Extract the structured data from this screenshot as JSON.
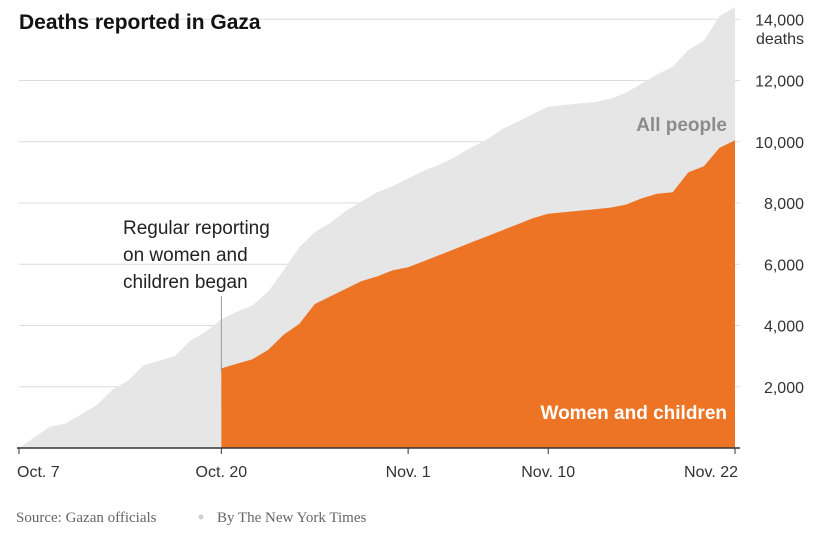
{
  "colors": {
    "all_people": "#e6e6e6",
    "women_children": "#ec7424",
    "grid": "#dcdcdc",
    "axis": "#333333",
    "title": "#121212",
    "bullet": "#cfcfcf"
  },
  "chart_data": {
    "type": "area",
    "title": "Deaths reported in Gaza",
    "y_unit": "deaths",
    "ylim": [
      0,
      14500
    ],
    "x_range": [
      "Oct. 7",
      "Nov. 22"
    ],
    "x_axis_ticks": [
      {
        "day": 0,
        "label": "Oct. 7"
      },
      {
        "day": 13,
        "label": "Oct. 20"
      },
      {
        "day": 25,
        "label": "Nov. 1"
      },
      {
        "day": 34,
        "label": "Nov. 10"
      },
      {
        "day": 46,
        "label": "Nov. 22"
      }
    ],
    "y_axis_ticks": [
      {
        "value": 2000,
        "label": "2,000"
      },
      {
        "value": 4000,
        "label": "4,000"
      },
      {
        "value": 6000,
        "label": "6,000"
      },
      {
        "value": 8000,
        "label": "8,000"
      },
      {
        "value": 10000,
        "label": "10,000"
      },
      {
        "value": 12000,
        "label": "12,000"
      },
      {
        "value": 14000,
        "label": "14,000"
      }
    ],
    "grid": true,
    "series": [
      {
        "name": "All people",
        "points": [
          [
            0,
            0
          ],
          [
            1,
            350
          ],
          [
            2,
            700
          ],
          [
            3,
            800
          ],
          [
            4,
            1100
          ],
          [
            5,
            1400
          ],
          [
            6,
            1900
          ],
          [
            7,
            2200
          ],
          [
            8,
            2700
          ],
          [
            9,
            2850
          ],
          [
            10,
            3000
          ],
          [
            11,
            3500
          ],
          [
            12,
            3800
          ],
          [
            13,
            4200
          ],
          [
            14,
            4450
          ],
          [
            15,
            4650
          ],
          [
            16,
            5100
          ],
          [
            17,
            5800
          ],
          [
            18,
            6550
          ],
          [
            19,
            7050
          ],
          [
            20,
            7350
          ],
          [
            21,
            7750
          ],
          [
            22,
            8050
          ],
          [
            23,
            8350
          ],
          [
            24,
            8550
          ],
          [
            25,
            8800
          ],
          [
            26,
            9050
          ],
          [
            27,
            9250
          ],
          [
            28,
            9500
          ],
          [
            29,
            9800
          ],
          [
            30,
            10050
          ],
          [
            31,
            10400
          ],
          [
            32,
            10650
          ],
          [
            33,
            10900
          ],
          [
            34,
            11150
          ],
          [
            35,
            11200
          ],
          [
            36,
            11250
          ],
          [
            37,
            11300
          ],
          [
            38,
            11400
          ],
          [
            39,
            11600
          ],
          [
            40,
            11900
          ],
          [
            41,
            12200
          ],
          [
            42,
            12450
          ],
          [
            43,
            13000
          ],
          [
            44,
            13300
          ],
          [
            45,
            14100
          ],
          [
            46,
            14400
          ]
        ]
      },
      {
        "name": "Women and children",
        "points": [
          [
            13,
            2600
          ],
          [
            14,
            2750
          ],
          [
            15,
            2900
          ],
          [
            16,
            3200
          ],
          [
            17,
            3700
          ],
          [
            18,
            4050
          ],
          [
            19,
            4700
          ],
          [
            20,
            4950
          ],
          [
            21,
            5200
          ],
          [
            22,
            5450
          ],
          [
            23,
            5600
          ],
          [
            24,
            5800
          ],
          [
            25,
            5900
          ],
          [
            26,
            6100
          ],
          [
            27,
            6300
          ],
          [
            28,
            6500
          ],
          [
            29,
            6700
          ],
          [
            30,
            6900
          ],
          [
            31,
            7100
          ],
          [
            32,
            7300
          ],
          [
            33,
            7500
          ],
          [
            34,
            7650
          ],
          [
            35,
            7700
          ],
          [
            36,
            7750
          ],
          [
            37,
            7800
          ],
          [
            38,
            7850
          ],
          [
            39,
            7950
          ],
          [
            40,
            8150
          ],
          [
            41,
            8300
          ],
          [
            42,
            8350
          ],
          [
            43,
            9000
          ],
          [
            44,
            9200
          ],
          [
            45,
            9800
          ],
          [
            46,
            10050
          ]
        ]
      }
    ],
    "annotation": {
      "day": 13,
      "lines": [
        "Regular reporting",
        "on women and",
        "children began"
      ]
    },
    "source": "Source: Gazan officials",
    "credit": "By The New York Times"
  }
}
